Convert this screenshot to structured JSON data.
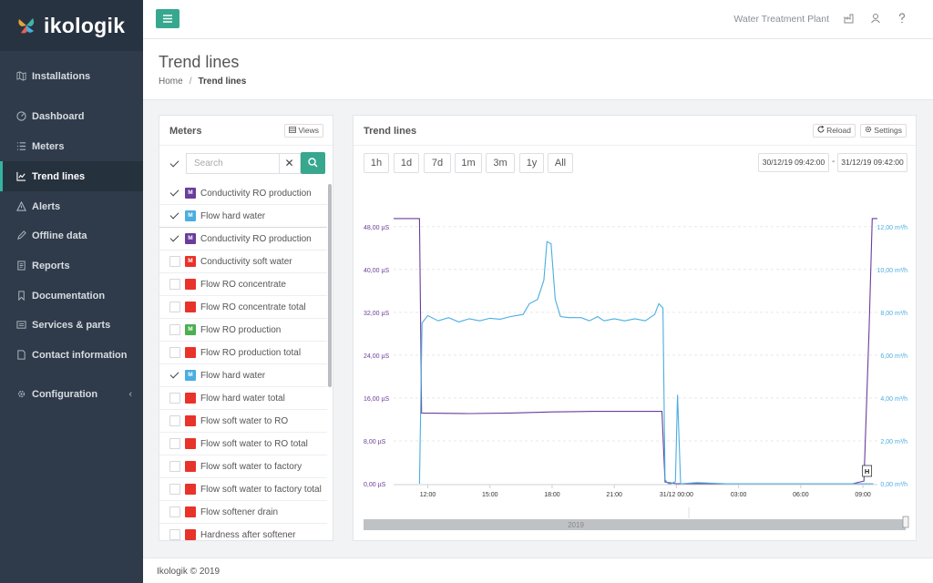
{
  "brand": {
    "name": "ikologik"
  },
  "nav": [
    {
      "label": "Installations",
      "icon": "map-icon"
    },
    {
      "label": "Dashboard",
      "icon": "dashboard-icon"
    },
    {
      "label": "Meters",
      "icon": "list-icon"
    },
    {
      "label": "Trend lines",
      "icon": "line-chart-icon",
      "active": true
    },
    {
      "label": "Alerts",
      "icon": "alert-icon"
    },
    {
      "label": "Offline data",
      "icon": "pencil-icon"
    },
    {
      "label": "Reports",
      "icon": "report-icon"
    },
    {
      "label": "Documentation",
      "icon": "bookmark-icon"
    },
    {
      "label": "Services & parts",
      "icon": "services-icon"
    },
    {
      "label": "Contact information",
      "icon": "contact-icon"
    },
    {
      "label": "Configuration",
      "icon": "gear-icon",
      "chevron": "‹"
    }
  ],
  "topbar": {
    "plant": "Water Treatment Plant",
    "menu_icon": "hamburger-icon"
  },
  "header": {
    "title": "Trend lines",
    "breadcrumb": {
      "home": "Home",
      "separator": "/",
      "current": "Trend lines"
    }
  },
  "meters_panel": {
    "title": "Meters",
    "views_label": "Views",
    "search_placeholder": "Search",
    "clear_label": "✕",
    "items": [
      {
        "label": "Conductivity RO production",
        "checked": true,
        "badge": "M",
        "color": "#6a3d9a"
      },
      {
        "label": "Flow hard water",
        "checked": true,
        "badge": "M",
        "color": "#4aaee0"
      },
      {
        "label": "Conductivity RO production",
        "checked": true,
        "badge": "M",
        "color": "#6a3d9a"
      },
      {
        "label": "Conductivity soft water",
        "checked": false,
        "badge": "M",
        "color": "#e8332a"
      },
      {
        "label": "Flow RO concentrate",
        "checked": false,
        "badge": "",
        "color": "#e8332a"
      },
      {
        "label": "Flow RO concentrate total",
        "checked": false,
        "badge": "",
        "color": "#e8332a"
      },
      {
        "label": "Flow RO production",
        "checked": false,
        "badge": "M",
        "color": "#4caf50"
      },
      {
        "label": "Flow RO production total",
        "checked": false,
        "badge": "",
        "color": "#e8332a"
      },
      {
        "label": "Flow hard water",
        "checked": true,
        "badge": "M",
        "color": "#4aaee0"
      },
      {
        "label": "Flow hard water total",
        "checked": false,
        "badge": "",
        "color": "#e8332a"
      },
      {
        "label": "Flow soft water to RO",
        "checked": false,
        "badge": "",
        "color": "#e8332a"
      },
      {
        "label": "Flow soft water to RO total",
        "checked": false,
        "badge": "",
        "color": "#e8332a"
      },
      {
        "label": "Flow soft water to factory",
        "checked": false,
        "badge": "",
        "color": "#e8332a"
      },
      {
        "label": "Flow soft water to factory total",
        "checked": false,
        "badge": "",
        "color": "#e8332a"
      },
      {
        "label": "Flow softener drain",
        "checked": false,
        "badge": "",
        "color": "#e8332a"
      },
      {
        "label": "Hardness after softener",
        "checked": false,
        "badge": "",
        "color": "#e8332a"
      }
    ]
  },
  "trend_panel": {
    "title": "Trend lines",
    "reload_label": "Reload",
    "settings_label": "Settings",
    "ranges": [
      "1h",
      "1d",
      "7d",
      "1m",
      "3m",
      "1y",
      "All"
    ],
    "date_from": "30/12/19 09:42:00",
    "date_sep": "-",
    "date_to": "31/12/19 09:42:00",
    "marker_label": "H",
    "navigator_label": "2019"
  },
  "chart_data": {
    "type": "line",
    "x_ticks": [
      "12:00",
      "15:00",
      "18:00",
      "21:00",
      "31/12 00:00",
      "03:00",
      "06:00",
      "09:00"
    ],
    "x_range": [
      10.35,
      33.7
    ],
    "y_left": {
      "ticks": [
        "0,00 µS",
        "8,00 µS",
        "16,00 µS",
        "24,00 µS",
        "32,00 µS",
        "40,00 µS",
        "48,00 µS"
      ],
      "range": [
        0,
        50
      ],
      "color": "#6a3d9a"
    },
    "y_right": {
      "ticks": [
        "0,00 m³/h",
        "2,00 m³/h",
        "4,00 m³/h",
        "6,00 m³/h",
        "8,00 m³/h",
        "10,00 m³/h",
        "12,00 m³/h"
      ],
      "range": [
        0,
        12.5
      ],
      "color": "#4aaee0"
    },
    "grid": true,
    "series": [
      {
        "axis": "left",
        "color": "#6a3d9a",
        "points": [
          [
            10.35,
            49.5
          ],
          [
            11.6,
            49.5
          ],
          [
            11.7,
            13.2
          ],
          [
            14,
            13.1
          ],
          [
            16,
            13.2
          ],
          [
            18,
            13.4
          ],
          [
            20,
            13.5
          ],
          [
            23.3,
            13.5
          ],
          [
            23.45,
            0.3
          ],
          [
            24,
            0
          ],
          [
            32.5,
            0
          ],
          [
            33.05,
            0.5
          ],
          [
            33.3,
            29
          ],
          [
            33.45,
            49.5
          ],
          [
            33.7,
            49.5
          ]
        ]
      },
      {
        "axis": "right",
        "color": "#4aaee0",
        "points": [
          [
            11.6,
            0
          ],
          [
            11.72,
            7.5
          ],
          [
            12,
            7.85
          ],
          [
            12.5,
            7.6
          ],
          [
            13,
            7.75
          ],
          [
            13.5,
            7.55
          ],
          [
            14,
            7.7
          ],
          [
            14.5,
            7.6
          ],
          [
            15,
            7.72
          ],
          [
            15.5,
            7.68
          ],
          [
            16,
            7.8
          ],
          [
            16.6,
            7.9
          ],
          [
            16.9,
            8.4
          ],
          [
            17.3,
            8.6
          ],
          [
            17.6,
            9.5
          ],
          [
            17.75,
            11.3
          ],
          [
            17.95,
            11.2
          ],
          [
            18.15,
            8.6
          ],
          [
            18.4,
            7.8
          ],
          [
            18.8,
            7.75
          ],
          [
            19.4,
            7.75
          ],
          [
            19.8,
            7.6
          ],
          [
            20.2,
            7.8
          ],
          [
            20.5,
            7.6
          ],
          [
            21,
            7.7
          ],
          [
            21.5,
            7.6
          ],
          [
            22,
            7.7
          ],
          [
            22.5,
            7.6
          ],
          [
            22.95,
            7.9
          ],
          [
            23.15,
            8.4
          ],
          [
            23.35,
            8.2
          ],
          [
            23.45,
            0.2
          ],
          [
            23.6,
            0
          ],
          [
            23.75,
            0
          ],
          [
            23.95,
            0.1
          ],
          [
            24.05,
            4.15
          ],
          [
            24.2,
            0
          ],
          [
            25,
            0.05
          ],
          [
            26.4,
            0
          ],
          [
            32.6,
            0
          ],
          [
            33.5,
            0
          ]
        ]
      }
    ]
  },
  "footer": {
    "text": "Ikologik © 2019"
  }
}
